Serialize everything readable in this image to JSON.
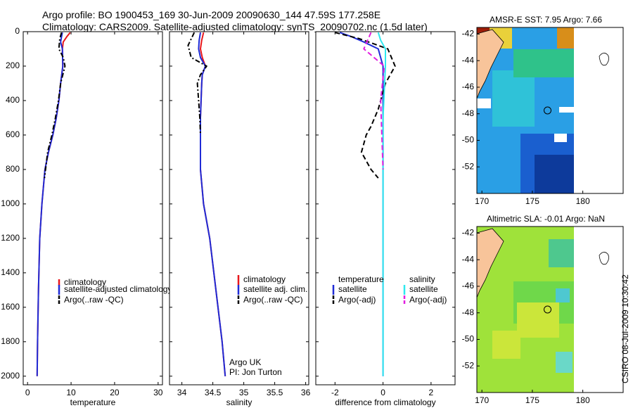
{
  "header": {
    "line1": "Argo profile: BO 1900453_169 30-Jun-2009 20090630_144 47.59S 177.258E",
    "line2": "Climatology: CARS2009. Satellite-adjusted climatology: synTS_20090702.nc (1.5d later)"
  },
  "footer": {
    "stamp": "CSIRO 08-Jul-2009 10:30:42"
  },
  "colors": {
    "climatology": "#e8161b",
    "satellite": "#1f2bd6",
    "argo": "#000000",
    "sat_salinity": "#2ee8ef",
    "argo_salinity": "#e21ee0",
    "land": "#f8c49a",
    "missing": "#ffffff"
  },
  "chart_data": [
    {
      "type": "line",
      "xlabel": "temperature",
      "xlim": [
        -1,
        31
      ],
      "ylim": [
        2050,
        0
      ],
      "y_reversed": true,
      "xticks": [
        0,
        10,
        20,
        30
      ],
      "yticks": [
        0,
        200,
        400,
        600,
        800,
        1000,
        1200,
        1400,
        1600,
        1800,
        2000
      ],
      "legend": [
        "climatology",
        "satellite-adjusted climatology",
        "Argo(..raw -QC)"
      ],
      "legend_placement": "lower-right",
      "series": [
        {
          "name": "climatology",
          "color": "#e8161b",
          "style": "solid",
          "x": [
            9.8,
            9.0,
            8.2,
            8.0,
            8.1,
            7.6,
            7.2,
            6.6,
            5.8,
            4.8,
            4.0,
            3.3,
            2.8,
            2.5,
            2.3,
            2.2
          ],
          "y": [
            5,
            30,
            60,
            100,
            200,
            300,
            400,
            500,
            600,
            700,
            800,
            1000,
            1200,
            1500,
            1800,
            2000
          ]
        },
        {
          "name": "satellite-adjusted climatology",
          "color": "#1f2bd6",
          "style": "solid",
          "x": [
            8.0,
            7.8,
            7.6,
            8.0,
            8.1,
            7.6,
            7.2,
            6.6,
            5.8,
            4.8,
            4.0,
            3.3,
            2.8,
            2.5,
            2.3,
            2.2
          ],
          "y": [
            5,
            30,
            60,
            100,
            200,
            300,
            400,
            500,
            600,
            700,
            800,
            1000,
            1200,
            1500,
            1800,
            2000
          ]
        },
        {
          "name": "Argo(..raw -QC)",
          "color": "#000000",
          "style": "dashdot",
          "x": [
            7.8,
            7.4,
            7.2,
            8.2,
            8.6,
            7.6,
            7.1,
            6.4,
            5.6,
            4.6,
            3.9
          ],
          "y": [
            5,
            40,
            100,
            150,
            200,
            300,
            400,
            500,
            600,
            700,
            850
          ]
        }
      ]
    },
    {
      "type": "line",
      "xlabel": "salinity",
      "xlim": [
        33.8,
        36.05
      ],
      "ylim": [
        2050,
        0
      ],
      "y_reversed": true,
      "xticks": [
        34,
        34.5,
        35,
        35.5,
        36
      ],
      "legend": [
        "climatology",
        "satellite adj. clim.",
        "Argo(..raw -QC)"
      ],
      "legend_placement": "lower-right",
      "annotation": [
        "Argo UK",
        "PI: Jon Turton"
      ],
      "series": [
        {
          "name": "climatology",
          "color": "#e8161b",
          "style": "solid",
          "x": [
            34.35,
            34.32,
            34.3,
            34.33,
            34.38,
            34.33,
            34.32,
            34.31,
            34.3,
            34.3,
            34.3,
            34.35,
            34.45,
            34.55,
            34.65,
            34.7
          ],
          "y": [
            5,
            50,
            100,
            150,
            200,
            250,
            300,
            400,
            500,
            600,
            800,
            1000,
            1200,
            1500,
            1800,
            2000
          ]
        },
        {
          "name": "satellite adj. clim.",
          "color": "#1f2bd6",
          "style": "solid",
          "x": [
            34.3,
            34.28,
            34.27,
            34.3,
            34.38,
            34.33,
            34.32,
            34.31,
            34.3,
            34.3,
            34.3,
            34.35,
            34.45,
            34.55,
            34.65,
            34.7
          ],
          "y": [
            5,
            50,
            100,
            150,
            200,
            250,
            300,
            400,
            500,
            600,
            800,
            1000,
            1200,
            1500,
            1800,
            2000
          ]
        },
        {
          "name": "Argo(..raw -QC)",
          "color": "#000000",
          "style": "dashdot",
          "x": [
            34.2,
            34.1,
            34.15,
            34.3,
            34.4,
            34.3,
            34.25,
            34.27,
            34.29,
            34.3
          ],
          "y": [
            5,
            80,
            150,
            180,
            200,
            250,
            300,
            400,
            500,
            600
          ]
        }
      ]
    },
    {
      "type": "line",
      "xlabel": "difference from climatology",
      "xlim": [
        -2.8,
        3.0
      ],
      "ylim": [
        2050,
        0
      ],
      "y_reversed": true,
      "xticks": [
        -2,
        0,
        2
      ],
      "legend": [
        "temperature",
        "satellite",
        "Argo(-adj)",
        "salinity",
        "satellite",
        "Argo(-adj)"
      ],
      "legend_placement": "lower-center",
      "series": [
        {
          "name": "temperature satellite",
          "color": "#1f2bd6",
          "style": "solid",
          "x": [
            -1.8,
            -1.3,
            -0.8,
            -0.2,
            0.0,
            0.0,
            0.0
          ],
          "y": [
            5,
            30,
            60,
            100,
            200,
            500,
            2000
          ]
        },
        {
          "name": "temperature Argo(-adj)",
          "color": "#000000",
          "style": "dashed",
          "x": [
            -2.0,
            -1.0,
            0.2,
            0.5,
            0.1,
            -0.2,
            -0.5,
            -0.7,
            -0.9,
            -0.5,
            -0.2
          ],
          "y": [
            5,
            40,
            100,
            200,
            300,
            450,
            550,
            600,
            700,
            800,
            850
          ]
        },
        {
          "name": "salinity satellite",
          "color": "#2ee8ef",
          "style": "solid",
          "x": [
            -0.2,
            -0.1,
            0.1,
            0.1,
            0.0,
            0.0
          ],
          "y": [
            5,
            50,
            100,
            200,
            500,
            2000
          ]
        },
        {
          "name": "salinity Argo(-adj)",
          "color": "#e21ee0",
          "style": "dashed",
          "x": [
            -0.5,
            -0.8,
            0.05,
            -0.1,
            0.0
          ],
          "y": [
            5,
            100,
            200,
            400,
            800
          ]
        }
      ]
    },
    {
      "type": "heatmap",
      "title": "AMSR-E SST: 7.95 Argo: 7.66",
      "xlim": [
        169.5,
        184
      ],
      "ylim": [
        -54,
        -41.5
      ],
      "xticks": [
        170,
        175,
        180
      ],
      "yticks": [
        -42,
        -44,
        -46,
        -48,
        -50,
        -52
      ],
      "profile_location": [
        177.258,
        -47.59
      ]
    },
    {
      "type": "heatmap",
      "title": "Altimetric SLA: -0.01 Argo: NaN",
      "xlim": [
        169.5,
        184
      ],
      "ylim": [
        -54,
        -41.5
      ],
      "xticks": [
        170,
        175,
        180
      ],
      "yticks": [
        -42,
        -44,
        -46,
        -48,
        -50,
        -52
      ],
      "profile_location": [
        177.258,
        -47.59
      ]
    }
  ]
}
